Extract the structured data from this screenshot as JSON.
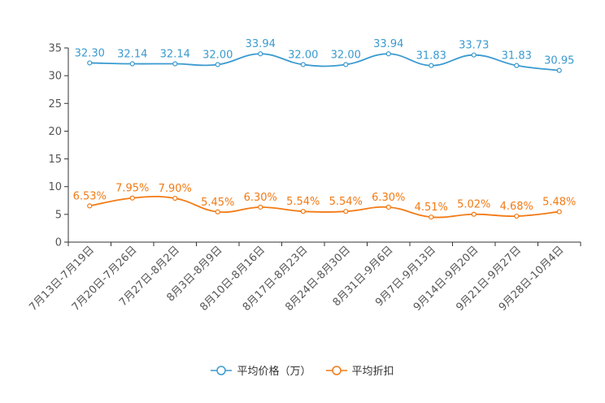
{
  "chart_data": {
    "type": "line",
    "categories": [
      "7月13日-7月19日",
      "7月20日-7月26日",
      "7月27日-8月2日",
      "8月3日-8月9日",
      "8月10日-8月16日",
      "8月17日-8月23日",
      "8月24日-8月30日",
      "8月31日-9月6日",
      "9月7日-9月13日",
      "9月14日-9月20日",
      "9月21日-9月27日",
      "9月28日-10月4日"
    ],
    "ylim": [
      0,
      35
    ],
    "yticks": [
      0,
      5,
      10,
      15,
      20,
      25,
      30,
      35
    ],
    "series": [
      {
        "name": "平均价格（万）",
        "color": "#3a9ad0",
        "values": [
          32.3,
          32.14,
          32.14,
          32.0,
          33.94,
          32.0,
          32.0,
          33.94,
          31.83,
          33.73,
          31.83,
          30.95
        ],
        "labels": [
          "32.30",
          "32.14",
          "32.14",
          "32.00",
          "33.94",
          "32.00",
          "32.00",
          "33.94",
          "31.83",
          "33.73",
          "31.83",
          "30.95"
        ]
      },
      {
        "name": "平均折扣",
        "color": "#f27a14",
        "values": [
          6.53,
          7.95,
          7.9,
          5.45,
          6.3,
          5.54,
          5.54,
          6.3,
          4.51,
          5.02,
          4.68,
          5.48
        ],
        "labels": [
          "6.53%",
          "7.95%",
          "7.90%",
          "5.45%",
          "6.30%",
          "5.54%",
          "5.54%",
          "6.30%",
          "4.51%",
          "5.02%",
          "4.68%",
          "5.48%"
        ]
      }
    ]
  }
}
